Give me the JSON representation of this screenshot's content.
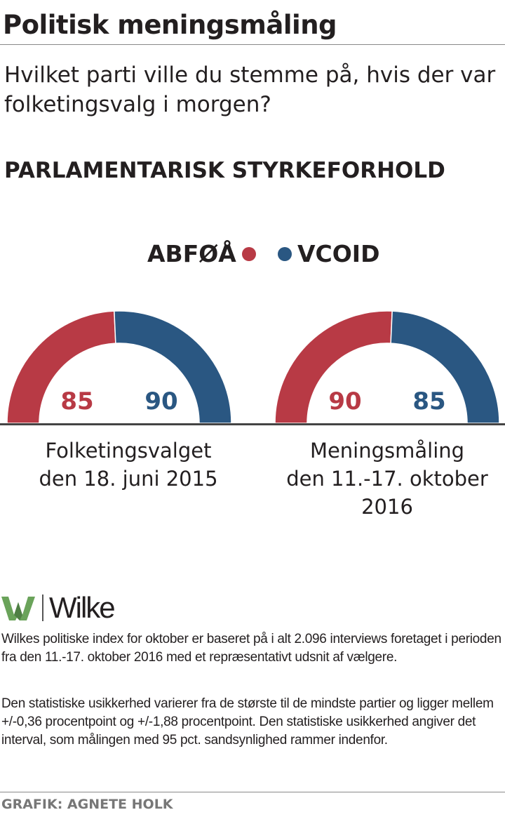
{
  "header": {
    "title": "Politisk meningsmåling",
    "question": "Hvilket parti ville du stemme på, hvis der var folketingsvalg i morgen?"
  },
  "chart_data": {
    "type": "pie",
    "title": "PARLAMENTARISK STYRKEFORHOLD",
    "legend": [
      {
        "name": "ABFØÅ",
        "color": "#b83a45"
      },
      {
        "name": "VCOID",
        "color": "#2a5782"
      }
    ],
    "charts": [
      {
        "caption_line1": "Folketingsvalget",
        "caption_line2": "den 18. juni 2015",
        "caption_line3": "",
        "values": [
          85,
          90
        ]
      },
      {
        "caption_line1": "Meningsmåling",
        "caption_line2": "den 11.-17. oktober",
        "caption_line3": "2016",
        "values": [
          90,
          85
        ]
      }
    ]
  },
  "footer": {
    "logo_text": "Wilke",
    "note1": "Wilkes politiske index for oktober er baseret på i alt 2.096 interviews foretaget i perioden fra den 11.-17. oktober 2016 med et repræsentativt udsnit af vælgere.",
    "note2": "Den statistiske usikkerhed varierer fra de største til de mindste partier og ligger mellem +/-0,36 procentpoint og +/-1,88 procentpoint. Den statistiske usikkerhed angiver det interval, som målingen med 95 pct. sandsynlighed rammer indenfor.",
    "credit": "GRAFIK: AGNETE HOLK"
  }
}
